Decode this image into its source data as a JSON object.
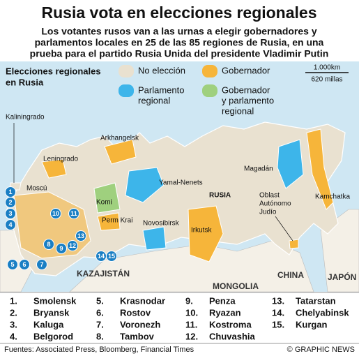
{
  "title": "Rusia vota en elecciones regionales",
  "subtitle": [
    "Los votantes rusos van a las urnas a elegir gobernadores y",
    "parlamentos locales en 25 de las 85 regiones de Rusia, en una",
    "prueba para el partido Rusia Unida del presidente Vladimir Putin"
  ],
  "legend": {
    "title": [
      "Elecciones regionales",
      "en Rusia"
    ],
    "items": [
      {
        "label": [
          "No elección"
        ],
        "color": "#e9e1d0"
      },
      {
        "label": [
          "Gobernador"
        ],
        "color": "#f6b53a"
      },
      {
        "label": [
          "Parlamento",
          "regional"
        ],
        "color": "#3db5ea"
      },
      {
        "label": [
          "Gobernador",
          "y parlamento",
          "regional"
        ],
        "color": "#9fd07e"
      }
    ]
  },
  "scale": {
    "km": "1.000km",
    "miles": "620 millas"
  },
  "map_labels": {
    "kaliningrad": "Kaliningrado",
    "leningrad": "Leningrado",
    "moscow": "Moscú",
    "arkhangelsk": "Arkhangelsk",
    "yamal": "Yamal-Nenets",
    "komi": "Komi",
    "perm": "Perm Krai",
    "novosibirsk": "Novosibirsk",
    "irkutsk": "Irkutsk",
    "magadan": "Magadán",
    "jewish": [
      "Oblast",
      "Autónomo",
      "Judío"
    ],
    "kamchatka": "Kamchatka",
    "russia": "RUSIA",
    "kazakhstan": "KAZAJISTÁN",
    "mongolia": "MONGOLIA",
    "china": "CHINA",
    "japan": "JAPÓN"
  },
  "map_markers": [
    "1",
    "2",
    "3",
    "4",
    "5",
    "6",
    "7",
    "8",
    "9",
    "10",
    "11",
    "12",
    "13",
    "14",
    "15"
  ],
  "key": [
    {
      "number": "1.",
      "name": "Smolensk"
    },
    {
      "number": "2.",
      "name": "Bryansk"
    },
    {
      "number": "3.",
      "name": "Kaluga"
    },
    {
      "number": "4.",
      "name": "Belgorod"
    },
    {
      "number": "5.",
      "name": "Krasnodar"
    },
    {
      "number": "6.",
      "name": "Rostov"
    },
    {
      "number": "7.",
      "name": "Voronezh"
    },
    {
      "number": "8.",
      "name": "Tambov"
    },
    {
      "number": "9.",
      "name": "Penza"
    },
    {
      "number": "10.",
      "name": "Ryazan"
    },
    {
      "number": "11.",
      "name": "Kostroma"
    },
    {
      "number": "12.",
      "name": "Chuvashia"
    },
    {
      "number": "13.",
      "name": "Tatarstan"
    },
    {
      "number": "14.",
      "name": "Chelyabinsk"
    },
    {
      "number": "15.",
      "name": "Kurgan"
    }
  ],
  "footer": {
    "source": "Fuentes: Associated Press, Bloomberg, Financial Times",
    "credit": "© GRAPHIC NEWS"
  }
}
